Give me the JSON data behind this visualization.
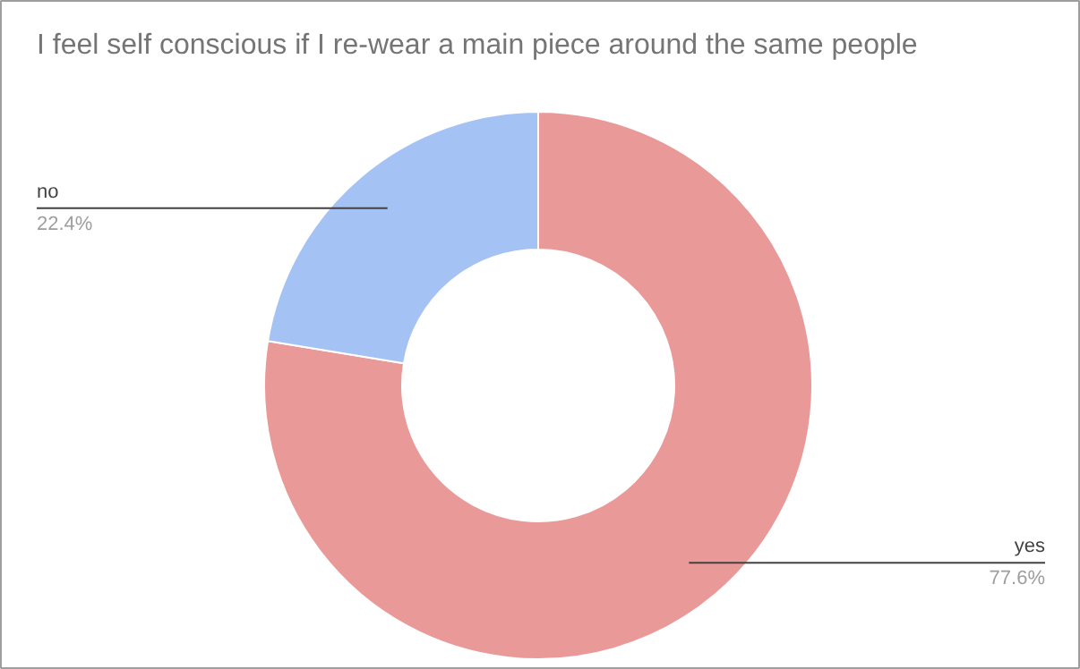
{
  "chart_data": {
    "type": "donut",
    "title": "I feel self conscious if I re-wear a main piece around the same people",
    "categories": [
      "yes",
      "no"
    ],
    "values": [
      77.6,
      22.4
    ],
    "value_labels": [
      "77.6%",
      "22.4%"
    ],
    "colors": [
      "#ea9999",
      "#a4c2f4"
    ]
  }
}
